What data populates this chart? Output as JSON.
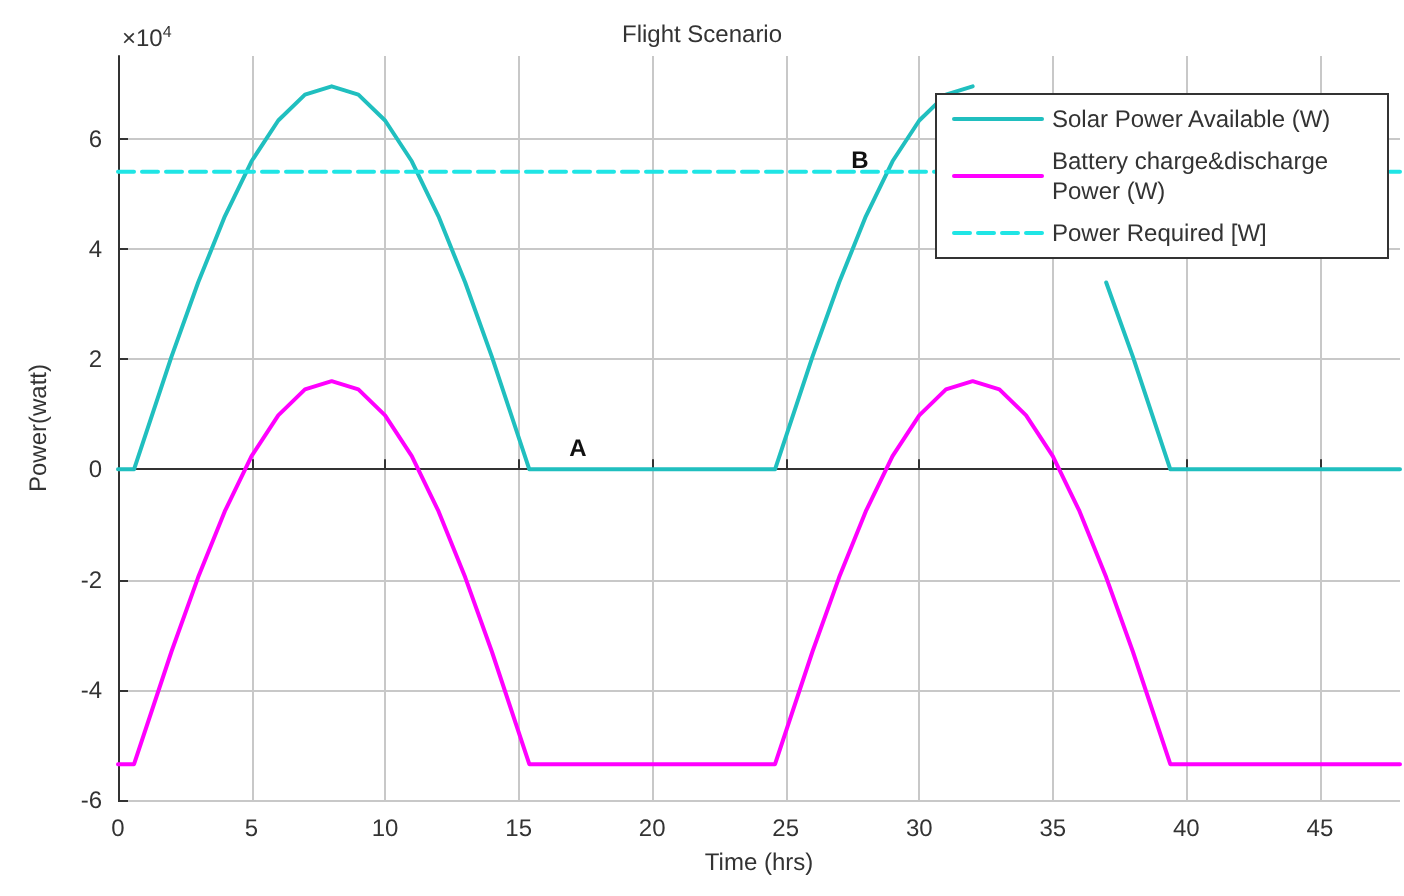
{
  "chart_data": {
    "type": "line",
    "title": "Flight Scenario",
    "xlabel": "Time (hrs)",
    "ylabel": "Power(watt)",
    "series": [
      {
        "name": "Solar Power Available (W)",
        "color": "#20bfbf",
        "line_style": "solid",
        "x": [
          0,
          0.6,
          2,
          3,
          4,
          5,
          6,
          7,
          8,
          9,
          10,
          11,
          12,
          13,
          14,
          15.4,
          24.6,
          26,
          27,
          28,
          29,
          30,
          31,
          32,
          33,
          34,
          35,
          36,
          37,
          38,
          39.4,
          48
        ],
        "values": [
          0,
          0,
          2.04,
          3.39,
          4.59,
          5.59,
          6.33,
          6.8,
          6.95,
          6.8,
          6.33,
          5.59,
          4.59,
          3.39,
          2.04,
          0,
          0,
          2.04,
          3.39,
          4.59,
          5.59,
          6.33,
          6.8,
          6.95,
          null,
          null,
          null,
          null,
          3.39,
          2.04,
          0,
          0
        ]
      },
      {
        "name": "Battery charge&discharge Power (W)",
        "color": "#ff00ff",
        "line_style": "solid",
        "x": [
          0,
          0.6,
          2,
          3,
          4,
          5,
          6,
          7,
          8,
          9,
          10,
          11,
          12,
          13,
          14,
          15.4,
          24.6,
          26,
          27,
          28,
          29,
          30,
          31,
          32,
          33,
          34,
          35,
          36,
          37,
          38,
          39.4,
          48
        ],
        "values": [
          -5.35,
          -5.35,
          -3.31,
          -1.96,
          -0.76,
          0.24,
          0.98,
          1.45,
          1.6,
          1.45,
          0.98,
          0.24,
          -0.76,
          -1.96,
          -3.31,
          -5.35,
          -5.35,
          -3.31,
          -1.96,
          -0.76,
          0.24,
          0.98,
          1.45,
          1.6,
          1.45,
          0.98,
          0.24,
          -0.76,
          -1.96,
          -3.31,
          -5.35,
          -5.35
        ]
      },
      {
        "name": "Power Required [W]",
        "color": "#1fe5e5",
        "line_style": "dashed",
        "x": [
          0,
          48
        ],
        "values": [
          5.4,
          5.4
        ]
      }
    ],
    "xlim": [
      0,
      48
    ],
    "xticks": [
      0,
      5,
      10,
      15,
      20,
      25,
      30,
      35,
      40,
      45
    ],
    "ylim": [
      -6,
      7.5
    ],
    "yticks": [
      -6,
      -4,
      -2,
      0,
      2,
      4,
      6
    ],
    "annotations": [
      "×10$^{4}$",
      "A",
      "B"
    ],
    "grid": true,
    "legend": "top right",
    "marker": "none"
  }
}
